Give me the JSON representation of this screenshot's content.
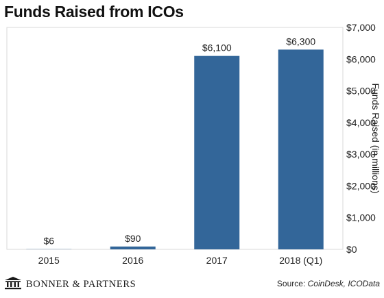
{
  "chart_data": {
    "type": "bar",
    "title": "Funds Raised from ICOs",
    "xlabel": "",
    "ylabel": "Funds Raised (in millions)",
    "categories": [
      "2015",
      "2016",
      "2017",
      "2018 (Q1)"
    ],
    "values": [
      6,
      90,
      6100,
      6300
    ],
    "data_labels": [
      "$6",
      "$90",
      "$6,100",
      "$6,300"
    ],
    "ylim": [
      0,
      7000
    ],
    "yticks": [
      0,
      1000,
      2000,
      3000,
      4000,
      5000,
      6000,
      7000
    ],
    "ytick_labels": [
      "$0",
      "$1,000",
      "$2,000",
      "$3,000",
      "$4,000",
      "$5,000",
      "$6,000",
      "$7,000"
    ],
    "y_axis_side": "right",
    "grid": false,
    "bar_color": "#336699"
  },
  "footer": {
    "brand": "BONNER & PARTNERS",
    "brand_icon": "building-columns-icon",
    "source_label": "Source: ",
    "source_names": "CoinDesk, ICOData"
  }
}
